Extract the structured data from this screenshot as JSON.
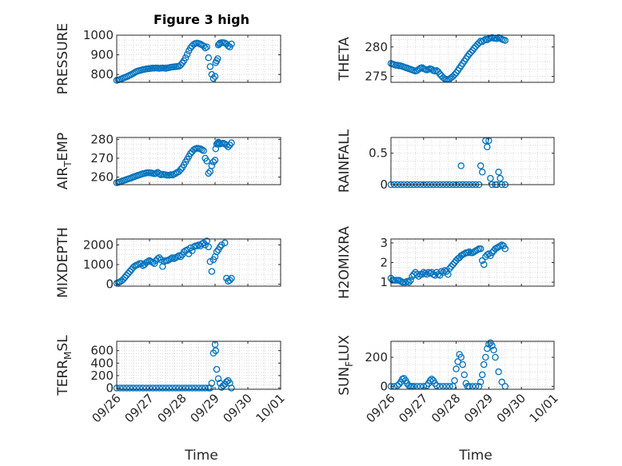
{
  "figure": {
    "title": "Figure 3 high",
    "xlabel": "Time",
    "colors": {
      "marker": "#0072BD",
      "axis": "#262626",
      "grid": "#d0d0d0",
      "background": "#ffffff"
    }
  },
  "chart_data": [
    {
      "type": "scatter",
      "title": "Figure 3 high",
      "ylabel": "PRESSURE",
      "ylim": [
        760,
        1000
      ],
      "yticks": [
        800,
        900,
        1000
      ],
      "ytick_labels": [
        "800",
        "900",
        "1000"
      ],
      "xlim": [
        0,
        5
      ],
      "x_unit": "days since 09/26",
      "grid": true,
      "x": [
        0.0,
        0.05,
        0.1,
        0.15,
        0.2,
        0.25,
        0.3,
        0.35,
        0.4,
        0.45,
        0.5,
        0.55,
        0.6,
        0.65,
        0.7,
        0.75,
        0.8,
        0.85,
        0.9,
        0.95,
        1.0,
        1.05,
        1.1,
        1.15,
        1.2,
        1.25,
        1.3,
        1.35,
        1.4,
        1.45,
        1.5,
        1.55,
        1.6,
        1.65,
        1.7,
        1.75,
        1.8,
        1.85,
        1.9,
        1.95,
        2.0,
        2.05,
        2.1,
        2.15,
        2.2,
        2.25,
        2.3,
        2.35,
        2.4,
        2.45,
        2.5,
        2.55,
        2.6,
        2.65,
        2.7,
        2.75,
        2.8,
        2.85,
        2.9,
        2.95,
        3.0,
        3.02,
        3.05,
        3.08,
        3.1,
        3.13,
        3.15,
        3.2,
        3.25,
        3.3,
        3.35,
        3.4,
        3.45,
        3.5
      ],
      "y": [
        770,
        772,
        775,
        778,
        782,
        785,
        788,
        792,
        796,
        800,
        805,
        810,
        815,
        818,
        820,
        822,
        825,
        826,
        828,
        829,
        830,
        831,
        832,
        832,
        833,
        832,
        831,
        832,
        833,
        832,
        831,
        833,
        835,
        837,
        838,
        839,
        840,
        841,
        842,
        848,
        858,
        870,
        885,
        902,
        920,
        935,
        945,
        953,
        958,
        960,
        958,
        955,
        950,
        945,
        935,
        940,
        885,
        840,
        800,
        780,
        790,
        860,
        870,
        880,
        950,
        955,
        960,
        962,
        962,
        960,
        955,
        945,
        940,
        955
      ]
    },
    {
      "type": "scatter",
      "ylabel": "THETA",
      "ylim": [
        274,
        282
      ],
      "yticks": [
        275,
        280
      ],
      "ytick_labels": [
        "275",
        "280"
      ],
      "xlim": [
        0,
        5
      ],
      "x_unit": "days since 09/26",
      "grid": true,
      "x": [
        0.0,
        0.05,
        0.1,
        0.15,
        0.2,
        0.25,
        0.3,
        0.35,
        0.4,
        0.45,
        0.5,
        0.55,
        0.6,
        0.65,
        0.7,
        0.75,
        0.8,
        0.85,
        0.9,
        0.95,
        1.0,
        1.05,
        1.1,
        1.15,
        1.2,
        1.25,
        1.3,
        1.35,
        1.4,
        1.45,
        1.5,
        1.55,
        1.6,
        1.65,
        1.7,
        1.75,
        1.8,
        1.85,
        1.9,
        1.95,
        2.0,
        2.05,
        2.1,
        2.15,
        2.2,
        2.25,
        2.3,
        2.35,
        2.4,
        2.45,
        2.5,
        2.55,
        2.6,
        2.65,
        2.7,
        2.75,
        2.8,
        2.85,
        2.9,
        2.95,
        3.0,
        3.05,
        3.1,
        3.15,
        3.2,
        3.25,
        3.3,
        3.35,
        3.4,
        3.45,
        3.5
      ],
      "y": [
        277.2,
        277.1,
        277.0,
        276.9,
        276.9,
        276.8,
        276.8,
        276.7,
        276.6,
        276.5,
        276.4,
        276.3,
        276.2,
        276.1,
        276.0,
        275.9,
        276.0,
        276.2,
        276.4,
        276.5,
        276.3,
        276.2,
        276.1,
        276.2,
        276.3,
        276.2,
        276.0,
        275.9,
        276.0,
        275.8,
        275.4,
        275.1,
        274.8,
        274.6,
        274.5,
        274.5,
        274.6,
        274.8,
        275.0,
        275.3,
        275.6,
        276.0,
        276.4,
        276.8,
        277.2,
        277.6,
        278.0,
        278.4,
        278.8,
        279.1,
        279.4,
        279.8,
        280.1,
        280.4,
        280.7,
        281.0,
        280.9,
        281.1,
        281.3,
        281.2,
        281.4,
        281.5,
        281.6,
        281.5,
        281.5,
        281.4,
        281.6,
        281.5,
        281.3,
        281.2,
        281.1
      ]
    },
    {
      "type": "scatter",
      "ylabel": "AIR_TEMP",
      "ylabel_parts": [
        "AIR",
        "T",
        "EMP"
      ],
      "ylim": [
        256,
        281
      ],
      "yticks": [
        260,
        270,
        280
      ],
      "ytick_labels": [
        "260",
        "270",
        "280"
      ],
      "xlim": [
        0,
        5
      ],
      "x_unit": "days since 09/26",
      "grid": true,
      "x": [
        0.0,
        0.05,
        0.1,
        0.15,
        0.2,
        0.25,
        0.3,
        0.35,
        0.4,
        0.45,
        0.5,
        0.55,
        0.6,
        0.65,
        0.7,
        0.75,
        0.8,
        0.85,
        0.9,
        0.95,
        1.0,
        1.05,
        1.1,
        1.15,
        1.2,
        1.25,
        1.3,
        1.35,
        1.4,
        1.45,
        1.5,
        1.55,
        1.6,
        1.65,
        1.7,
        1.75,
        1.8,
        1.85,
        1.9,
        1.95,
        2.0,
        2.05,
        2.1,
        2.15,
        2.2,
        2.25,
        2.3,
        2.35,
        2.4,
        2.45,
        2.5,
        2.55,
        2.6,
        2.65,
        2.7,
        2.75,
        2.8,
        2.85,
        2.9,
        2.95,
        3.0,
        3.02,
        3.05,
        3.08,
        3.1,
        3.13,
        3.15,
        3.2,
        3.25,
        3.3,
        3.35,
        3.4,
        3.45,
        3.5
      ],
      "y": [
        257.0,
        257.2,
        257.5,
        257.8,
        258.1,
        258.4,
        258.7,
        259.0,
        259.3,
        259.6,
        260.0,
        260.3,
        260.6,
        260.9,
        261.2,
        261.5,
        261.8,
        262.0,
        262.2,
        262.3,
        262.3,
        262.2,
        262.0,
        261.8,
        262.0,
        262.5,
        261.8,
        261.2,
        261.5,
        261.3,
        261.2,
        261.0,
        261.0,
        261.3,
        261.1,
        261.5,
        262.0,
        262.5,
        263.0,
        264.0,
        265.0,
        266.5,
        268.0,
        269.5,
        271.0,
        272.5,
        273.5,
        274.5,
        275.0,
        275.3,
        275.2,
        275.0,
        274.5,
        274.0,
        270.0,
        268.5,
        262.0,
        263.0,
        266.0,
        268.0,
        269.0,
        275.0,
        277.5,
        278.0,
        278.5,
        278.0,
        277.5,
        277.8,
        278.0,
        277.5,
        277.0,
        276.0,
        277.0,
        278.2
      ]
    },
    {
      "type": "scatter",
      "ylabel": "RAINFALL",
      "ylim": [
        0,
        0.75
      ],
      "yticks": [
        0,
        0.5
      ],
      "ytick_labels": [
        "0",
        "0.5"
      ],
      "xlim": [
        0,
        5
      ],
      "x_unit": "days since 09/26",
      "grid": true,
      "x": [
        0.0,
        0.1,
        0.2,
        0.3,
        0.4,
        0.5,
        0.6,
        0.7,
        0.8,
        0.9,
        1.0,
        1.1,
        1.2,
        1.3,
        1.4,
        1.5,
        1.6,
        1.7,
        1.8,
        1.9,
        2.0,
        2.1,
        2.15,
        2.2,
        2.3,
        2.4,
        2.5,
        2.6,
        2.7,
        2.75,
        2.8,
        2.9,
        2.95,
        3.0,
        3.05,
        3.1,
        3.2,
        3.25,
        3.3,
        3.35,
        3.4,
        3.5
      ],
      "y": [
        0,
        0,
        0,
        0,
        0,
        0,
        0,
        0,
        0,
        0,
        0,
        0,
        0,
        0,
        0,
        0,
        0,
        0,
        0,
        0,
        0,
        0,
        0.3,
        0,
        0,
        0,
        0,
        0,
        0,
        0.3,
        0.2,
        0.7,
        0.6,
        0.7,
        0.1,
        0,
        0,
        0,
        0.2,
        0.1,
        0,
        0
      ]
    },
    {
      "type": "scatter",
      "ylabel": "MIXDEPTH",
      "ylim": [
        -100,
        2300
      ],
      "yticks": [
        0,
        1000,
        2000
      ],
      "ytick_labels": [
        "0",
        "1000",
        "2000"
      ],
      "xlim": [
        0,
        5
      ],
      "x_unit": "days since 09/26",
      "grid": true,
      "x": [
        0.0,
        0.05,
        0.1,
        0.15,
        0.2,
        0.25,
        0.3,
        0.35,
        0.4,
        0.45,
        0.5,
        0.55,
        0.6,
        0.65,
        0.7,
        0.75,
        0.8,
        0.85,
        0.9,
        0.95,
        1.0,
        1.05,
        1.1,
        1.15,
        1.2,
        1.25,
        1.3,
        1.35,
        1.4,
        1.45,
        1.5,
        1.55,
        1.6,
        1.65,
        1.7,
        1.75,
        1.8,
        1.85,
        1.9,
        1.95,
        2.0,
        2.05,
        2.1,
        2.15,
        2.2,
        2.25,
        2.3,
        2.35,
        2.4,
        2.45,
        2.5,
        2.55,
        2.6,
        2.65,
        2.7,
        2.75,
        2.8,
        2.85,
        2.9,
        2.95,
        3.0,
        3.05,
        3.1,
        3.15,
        3.2,
        3.3,
        3.35,
        3.4,
        3.45,
        3.5
      ],
      "y": [
        50,
        80,
        120,
        180,
        250,
        350,
        450,
        550,
        650,
        750,
        850,
        920,
        970,
        1000,
        1050,
        1050,
        950,
        1000,
        1100,
        1150,
        1200,
        1150,
        1100,
        1050,
        1200,
        1300,
        1350,
        1250,
        900,
        1150,
        1200,
        1200,
        1250,
        1300,
        1350,
        1300,
        1350,
        1400,
        1450,
        1400,
        1500,
        1650,
        1700,
        1750,
        1550,
        1850,
        1700,
        1900,
        1950,
        1950,
        2000,
        1950,
        2050,
        2100,
        2000,
        2200,
        1900,
        1150,
        650,
        1250,
        1400,
        1650,
        1750,
        1900,
        2000,
        2100,
        300,
        150,
        200,
        300
      ]
    },
    {
      "type": "scatter",
      "ylabel": "H2OMIXRA",
      "ylim": [
        0.8,
        3.2
      ],
      "yticks": [
        1,
        2,
        3
      ],
      "ytick_labels": [
        "1",
        "2",
        "3"
      ],
      "xlim": [
        0,
        5
      ],
      "x_unit": "days since 09/26",
      "grid": true,
      "x": [
        0.0,
        0.05,
        0.1,
        0.15,
        0.2,
        0.25,
        0.3,
        0.35,
        0.4,
        0.45,
        0.5,
        0.55,
        0.6,
        0.65,
        0.7,
        0.75,
        0.8,
        0.85,
        0.9,
        0.95,
        1.0,
        1.05,
        1.1,
        1.15,
        1.2,
        1.25,
        1.3,
        1.35,
        1.4,
        1.45,
        1.5,
        1.55,
        1.6,
        1.65,
        1.7,
        1.75,
        1.8,
        1.85,
        1.9,
        1.95,
        2.0,
        2.05,
        2.1,
        2.15,
        2.2,
        2.25,
        2.3,
        2.35,
        2.4,
        2.45,
        2.5,
        2.55,
        2.6,
        2.65,
        2.7,
        2.75,
        2.8,
        2.85,
        2.9,
        2.95,
        3.0,
        3.05,
        3.1,
        3.15,
        3.2,
        3.25,
        3.3,
        3.35,
        3.4,
        3.45,
        3.5
      ],
      "y": [
        1.2,
        1.1,
        1.1,
        1.1,
        1.1,
        1.1,
        1.05,
        1.0,
        1.0,
        1.0,
        1.05,
        1.0,
        1.1,
        1.3,
        1.4,
        1.5,
        1.4,
        1.3,
        1.4,
        1.4,
        1.5,
        1.45,
        1.4,
        1.5,
        1.45,
        1.5,
        1.4,
        1.35,
        1.5,
        1.4,
        1.35,
        1.55,
        1.5,
        1.6,
        1.55,
        1.4,
        1.7,
        1.8,
        1.9,
        2.0,
        2.1,
        2.2,
        2.25,
        2.35,
        2.4,
        2.45,
        2.5,
        2.5,
        2.55,
        2.5,
        2.5,
        2.55,
        2.6,
        2.65,
        2.7,
        2.7,
        2.1,
        1.9,
        2.3,
        2.4,
        2.45,
        2.35,
        2.5,
        2.6,
        2.7,
        2.75,
        2.8,
        2.85,
        2.9,
        2.85,
        2.7
      ]
    },
    {
      "type": "scatter",
      "ylabel": "TERR_MSL",
      "ylabel_parts": [
        "TERR",
        "M",
        "SL"
      ],
      "ylim": [
        -20,
        750
      ],
      "yticks": [
        0,
        200,
        400,
        600
      ],
      "ytick_labels": [
        "0",
        "200",
        "400",
        "600"
      ],
      "xlim": [
        0,
        5
      ],
      "x_unit": "days since 09/26",
      "grid": true,
      "x": [
        0.0,
        0.1,
        0.2,
        0.3,
        0.4,
        0.5,
        0.6,
        0.7,
        0.8,
        0.9,
        1.0,
        1.1,
        1.2,
        1.3,
        1.4,
        1.5,
        1.6,
        1.7,
        1.8,
        1.9,
        2.0,
        2.1,
        2.2,
        2.3,
        2.4,
        2.5,
        2.6,
        2.7,
        2.8,
        2.85,
        2.9,
        2.95,
        3.0,
        3.02,
        3.05,
        3.1,
        3.15,
        3.2,
        3.25,
        3.3,
        3.35,
        3.4,
        3.45,
        3.5
      ],
      "y": [
        0,
        0,
        0,
        0,
        0,
        0,
        0,
        0,
        0,
        0,
        0,
        0,
        0,
        0,
        0,
        0,
        0,
        0,
        0,
        0,
        0,
        0,
        0,
        0,
        0,
        0,
        0,
        0,
        0,
        0,
        80,
        560,
        700,
        600,
        300,
        150,
        80,
        10,
        40,
        60,
        100,
        120,
        80,
        0
      ]
    },
    {
      "type": "scatter",
      "ylabel": "SUN_FLUX",
      "ylabel_parts": [
        "SUN",
        "F",
        "LUX"
      ],
      "ylim": [
        -20,
        310
      ],
      "yticks": [
        0,
        200
      ],
      "ytick_labels": [
        "0",
        "200"
      ],
      "xlim": [
        0,
        5
      ],
      "x_unit": "days since 09/26",
      "grid": true,
      "x": [
        0.0,
        0.1,
        0.2,
        0.25,
        0.3,
        0.35,
        0.4,
        0.45,
        0.5,
        0.55,
        0.6,
        0.65,
        0.7,
        0.8,
        0.9,
        1.0,
        1.1,
        1.15,
        1.2,
        1.25,
        1.3,
        1.35,
        1.4,
        1.5,
        1.6,
        1.7,
        1.8,
        1.9,
        1.95,
        2.0,
        2.05,
        2.1,
        2.15,
        2.2,
        2.25,
        2.3,
        2.35,
        2.4,
        2.5,
        2.6,
        2.7,
        2.75,
        2.8,
        2.85,
        2.9,
        2.95,
        3.0,
        3.05,
        3.1,
        3.15,
        3.2,
        3.3,
        3.4,
        3.5
      ],
      "y": [
        0,
        0,
        5,
        15,
        30,
        50,
        55,
        40,
        20,
        5,
        0,
        0,
        0,
        0,
        0,
        0,
        5,
        20,
        40,
        50,
        40,
        20,
        5,
        0,
        0,
        0,
        0,
        0,
        40,
        120,
        170,
        220,
        200,
        150,
        80,
        20,
        0,
        0,
        0,
        0,
        0,
        30,
        80,
        150,
        200,
        260,
        290,
        300,
        280,
        250,
        200,
        100,
        30,
        0
      ]
    }
  ],
  "shared_x": {
    "ticks": [
      0,
      1,
      2,
      3,
      4,
      5
    ],
    "tick_labels": [
      "09/26",
      "09/27",
      "09/28",
      "09/29",
      "09/30",
      "10/01"
    ]
  }
}
